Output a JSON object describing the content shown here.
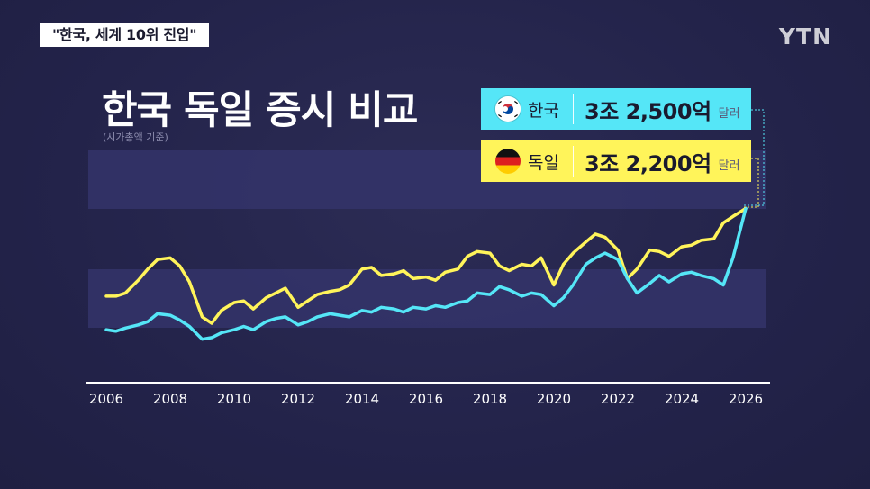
{
  "header": {
    "headline": "\"한국, 세계 10위 진입\"",
    "logo": "YTN"
  },
  "chart_data": {
    "type": "line",
    "title": "한국 독일 증시 비교",
    "subtitle": "(시가총액 기준)",
    "xlabel": "",
    "ylabel": "",
    "xlim": [
      2006,
      2026
    ],
    "ylim": [
      0,
      1
    ],
    "x_ticks": [
      "2006",
      "2008",
      "2010",
      "2012",
      "2014",
      "2016",
      "2018",
      "2020",
      "2022",
      "2024",
      "2026"
    ],
    "grid": false,
    "legend": "top-right",
    "series": [
      {
        "name": "한국",
        "label_value": "3조 2,500억",
        "label_unit": "달러",
        "color": "#55e6f7",
        "x": [
          2006.0,
          2006.3,
          2006.6,
          2007.0,
          2007.3,
          2007.6,
          2008.0,
          2008.3,
          2008.6,
          2009.0,
          2009.3,
          2009.6,
          2010.0,
          2010.3,
          2010.6,
          2011.0,
          2011.3,
          2011.6,
          2012.0,
          2012.3,
          2012.6,
          2013.0,
          2013.3,
          2013.6,
          2014.0,
          2014.3,
          2014.6,
          2015.0,
          2015.3,
          2015.6,
          2016.0,
          2016.3,
          2016.6,
          2017.0,
          2017.3,
          2017.6,
          2018.0,
          2018.3,
          2018.6,
          2019.0,
          2019.3,
          2019.6,
          2020.0,
          2020.3,
          2020.6,
          2021.0,
          2021.3,
          2021.6,
          2022.0,
          2022.3,
          2022.6,
          2023.0,
          2023.3,
          2023.6,
          2024.0,
          2024.3,
          2024.6,
          2025.0,
          2025.3,
          2025.6,
          2026.0
        ],
        "values": [
          0.22,
          0.21,
          0.23,
          0.25,
          0.27,
          0.32,
          0.31,
          0.28,
          0.24,
          0.16,
          0.17,
          0.2,
          0.22,
          0.24,
          0.22,
          0.27,
          0.29,
          0.3,
          0.25,
          0.27,
          0.3,
          0.32,
          0.31,
          0.3,
          0.34,
          0.33,
          0.36,
          0.35,
          0.33,
          0.36,
          0.35,
          0.37,
          0.36,
          0.39,
          0.4,
          0.45,
          0.44,
          0.49,
          0.47,
          0.43,
          0.45,
          0.44,
          0.37,
          0.42,
          0.5,
          0.63,
          0.67,
          0.7,
          0.66,
          0.54,
          0.45,
          0.51,
          0.56,
          0.52,
          0.57,
          0.58,
          0.56,
          0.54,
          0.5,
          0.67,
          0.98
        ]
      },
      {
        "name": "독일",
        "label_value": "3조 2,200억",
        "label_unit": "달러",
        "color": "#fff45a",
        "x": [
          2006.0,
          2006.3,
          2006.6,
          2007.0,
          2007.3,
          2007.6,
          2008.0,
          2008.3,
          2008.6,
          2009.0,
          2009.3,
          2009.6,
          2010.0,
          2010.3,
          2010.6,
          2011.0,
          2011.3,
          2011.6,
          2012.0,
          2012.3,
          2012.6,
          2013.0,
          2013.3,
          2013.6,
          2014.0,
          2014.3,
          2014.6,
          2015.0,
          2015.3,
          2015.6,
          2016.0,
          2016.3,
          2016.6,
          2017.0,
          2017.3,
          2017.6,
          2018.0,
          2018.3,
          2018.6,
          2019.0,
          2019.3,
          2019.6,
          2020.0,
          2020.3,
          2020.6,
          2021.0,
          2021.3,
          2021.6,
          2022.0,
          2022.3,
          2022.6,
          2023.0,
          2023.3,
          2023.6,
          2024.0,
          2024.3,
          2024.6,
          2025.0,
          2025.3,
          2025.6,
          2026.0
        ],
        "values": [
          0.43,
          0.43,
          0.45,
          0.53,
          0.6,
          0.66,
          0.67,
          0.62,
          0.52,
          0.3,
          0.26,
          0.34,
          0.39,
          0.4,
          0.35,
          0.42,
          0.45,
          0.48,
          0.36,
          0.4,
          0.44,
          0.46,
          0.47,
          0.5,
          0.6,
          0.61,
          0.56,
          0.57,
          0.59,
          0.54,
          0.55,
          0.53,
          0.58,
          0.6,
          0.68,
          0.71,
          0.7,
          0.62,
          0.59,
          0.63,
          0.62,
          0.67,
          0.5,
          0.63,
          0.7,
          0.77,
          0.82,
          0.8,
          0.72,
          0.54,
          0.6,
          0.72,
          0.71,
          0.68,
          0.74,
          0.75,
          0.78,
          0.79,
          0.89,
          0.93,
          0.98
        ]
      }
    ]
  }
}
